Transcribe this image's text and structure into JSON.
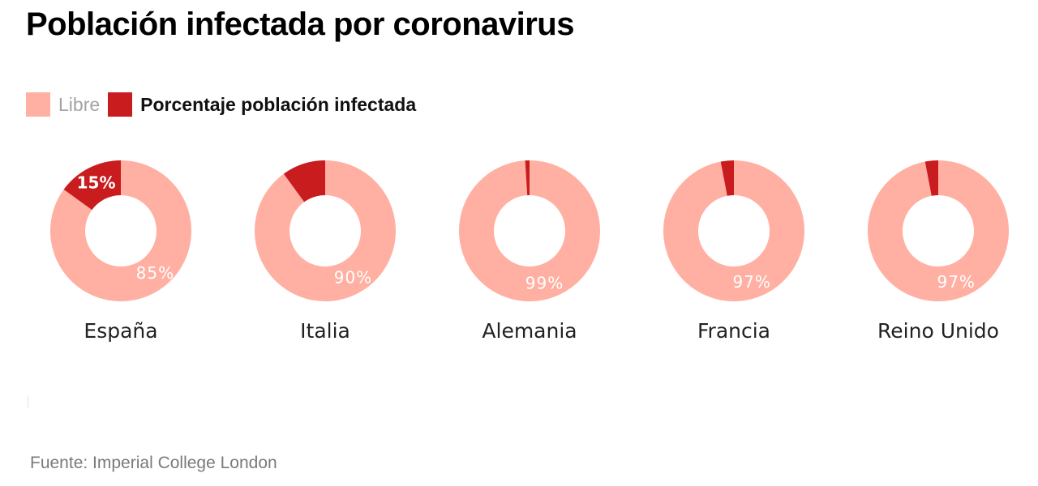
{
  "title": "Población infectada por coronavirus",
  "legend": {
    "free_label": "Libre",
    "infected_label": "Porcentaje población infectada"
  },
  "colors": {
    "free": "#ffb0a2",
    "infected": "#c81c1f",
    "free_text": "#ffffff",
    "infected_text": "#ffffff"
  },
  "source": "Fuente: Imperial College London",
  "chart_data": {
    "type": "pie",
    "variant": "donut",
    "legend_position": "top-left",
    "series_labels": [
      "Libre",
      "Porcentaje población infectada"
    ],
    "charts": [
      {
        "country": "España",
        "infected": 15,
        "free": 85,
        "infected_label": "15%",
        "free_label": "85%"
      },
      {
        "country": "Italia",
        "infected": 10,
        "free": 90,
        "infected_label": "",
        "free_label": "90%"
      },
      {
        "country": "Alemania",
        "infected": 1,
        "free": 99,
        "infected_label": "",
        "free_label": "99%"
      },
      {
        "country": "Francia",
        "infected": 3,
        "free": 97,
        "infected_label": "",
        "free_label": "97%"
      },
      {
        "country": "Reino Unido",
        "infected": 3,
        "free": 97,
        "infected_label": "",
        "free_label": "97%"
      }
    ]
  }
}
